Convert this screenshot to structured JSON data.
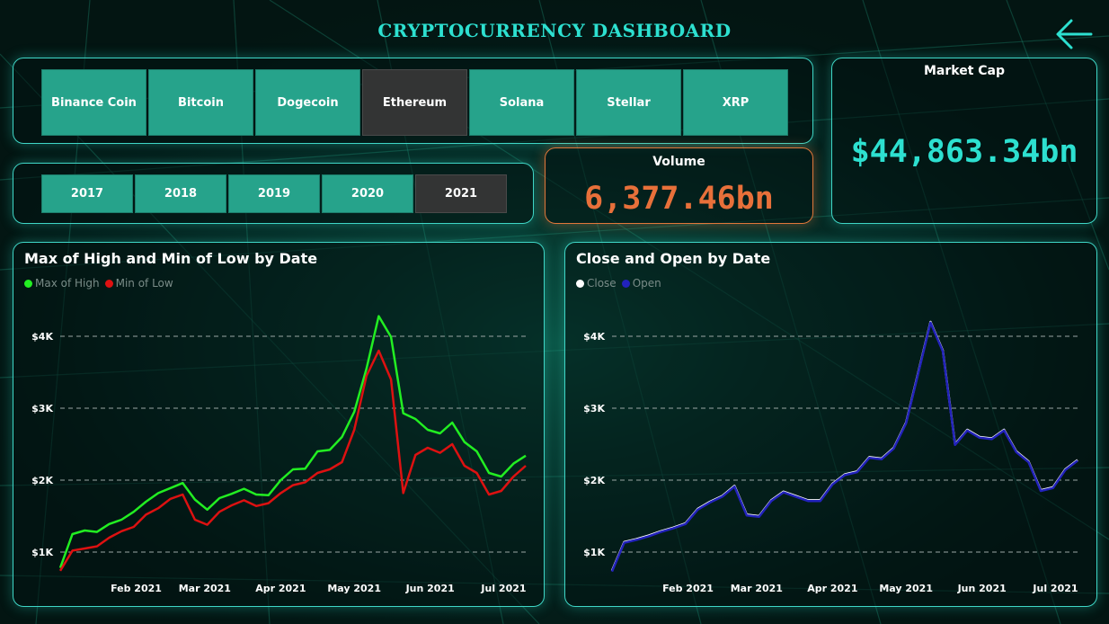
{
  "header": {
    "title": "CRYPTOCURRENCY DASHBOARD"
  },
  "icons": {
    "back": "back-arrow-icon"
  },
  "colors": {
    "accent": "#2de0d0",
    "button": "#26a38b",
    "button_selected": "#333434",
    "volume": "#e8703a",
    "market_cap": "#2de0d0",
    "high": "#22ee22",
    "low": "#dd1111",
    "close": "#ffffff",
    "open": "#2222bb"
  },
  "coin_slicer": {
    "items": [
      "Binance Coin",
      "Bitcoin",
      "Dogecoin",
      "Ethereum",
      "Solana",
      "Stellar",
      "XRP"
    ],
    "selected": "Ethereum"
  },
  "year_slicer": {
    "items": [
      "2017",
      "2018",
      "2019",
      "2020",
      "2021"
    ],
    "selected": "2021"
  },
  "volume": {
    "label": "Volume",
    "value": "6,377.46bn"
  },
  "market_cap": {
    "label": "Market Cap",
    "value": "$44,863.34bn"
  },
  "chart_data": [
    {
      "type": "line",
      "title": "Max of High and Min of Low by Date",
      "legend_position": "top-left",
      "grid": true,
      "x_tick_labels": [
        "Feb 2021",
        "Mar 2021",
        "Apr 2021",
        "May 2021",
        "Jun 2021",
        "Jul 2021"
      ],
      "y_tick_labels": [
        "$1K",
        "$2K",
        "$3K",
        "$4K"
      ],
      "ylim": [
        800,
        4300
      ],
      "x": [
        "2021-01-01",
        "2021-01-06",
        "2021-01-11",
        "2021-01-16",
        "2021-01-21",
        "2021-01-26",
        "2021-01-31",
        "2021-02-05",
        "2021-02-10",
        "2021-02-15",
        "2021-02-20",
        "2021-02-25",
        "2021-03-02",
        "2021-03-07",
        "2021-03-12",
        "2021-03-17",
        "2021-03-22",
        "2021-03-27",
        "2021-04-01",
        "2021-04-06",
        "2021-04-11",
        "2021-04-16",
        "2021-04-21",
        "2021-04-26",
        "2021-05-01",
        "2021-05-06",
        "2021-05-11",
        "2021-05-16",
        "2021-05-21",
        "2021-05-26",
        "2021-05-31",
        "2021-06-05",
        "2021-06-10",
        "2021-06-15",
        "2021-06-20",
        "2021-06-25",
        "2021-06-30",
        "2021-07-05",
        "2021-07-10"
      ],
      "series": [
        {
          "name": "Max of High",
          "color": "#22ee22",
          "values": [
            780,
            1250,
            1300,
            1280,
            1390,
            1450,
            1560,
            1700,
            1820,
            1890,
            1960,
            1730,
            1590,
            1750,
            1810,
            1880,
            1800,
            1790,
            2000,
            2150,
            2160,
            2400,
            2420,
            2600,
            2950,
            3550,
            4280,
            3990,
            2930,
            2850,
            2700,
            2650,
            2800,
            2530,
            2400,
            2100,
            2050,
            2230,
            2340
          ]
        },
        {
          "name": "Min of Low",
          "color": "#dd1111",
          "values": [
            740,
            1020,
            1050,
            1080,
            1200,
            1290,
            1350,
            1520,
            1610,
            1740,
            1800,
            1450,
            1380,
            1560,
            1650,
            1720,
            1640,
            1680,
            1820,
            1930,
            1970,
            2100,
            2150,
            2250,
            2700,
            3450,
            3800,
            3400,
            1820,
            2350,
            2450,
            2380,
            2500,
            2200,
            2100,
            1800,
            1850,
            2050,
            2200
          ]
        }
      ]
    },
    {
      "type": "line",
      "title": "Close and Open by Date",
      "legend_position": "top-left",
      "grid": true,
      "x_tick_labels": [
        "Feb 2021",
        "Mar 2021",
        "Apr 2021",
        "May 2021",
        "Jun 2021",
        "Jul 2021"
      ],
      "y_tick_labels": [
        "$1K",
        "$2K",
        "$3K",
        "$4K"
      ],
      "ylim": [
        800,
        4300
      ],
      "x": [
        "2021-01-01",
        "2021-01-06",
        "2021-01-11",
        "2021-01-16",
        "2021-01-21",
        "2021-01-26",
        "2021-01-31",
        "2021-02-05",
        "2021-02-10",
        "2021-02-15",
        "2021-02-20",
        "2021-02-25",
        "2021-03-02",
        "2021-03-07",
        "2021-03-12",
        "2021-03-17",
        "2021-03-22",
        "2021-03-27",
        "2021-04-01",
        "2021-04-06",
        "2021-04-11",
        "2021-04-16",
        "2021-04-21",
        "2021-04-26",
        "2021-05-01",
        "2021-05-06",
        "2021-05-11",
        "2021-05-16",
        "2021-05-21",
        "2021-05-26",
        "2021-05-31",
        "2021-06-05",
        "2021-06-10",
        "2021-06-15",
        "2021-06-20",
        "2021-06-25",
        "2021-06-30",
        "2021-07-05",
        "2021-07-10"
      ],
      "series": [
        {
          "name": "Close",
          "color": "#ffffff",
          "values": [
            740,
            1140,
            1180,
            1230,
            1290,
            1340,
            1400,
            1600,
            1700,
            1780,
            1920,
            1520,
            1500,
            1720,
            1840,
            1780,
            1720,
            1720,
            1950,
            2080,
            2120,
            2320,
            2300,
            2450,
            2800,
            3500,
            4200,
            3800,
            2500,
            2700,
            2600,
            2580,
            2700,
            2400,
            2260,
            1860,
            1900,
            2150,
            2280
          ]
        },
        {
          "name": "Open",
          "color": "#2222bb",
          "values": [
            730,
            1130,
            1170,
            1220,
            1280,
            1330,
            1390,
            1590,
            1690,
            1770,
            1910,
            1510,
            1490,
            1710,
            1830,
            1770,
            1710,
            1710,
            1940,
            2070,
            2110,
            2310,
            2290,
            2440,
            2790,
            3490,
            4190,
            3790,
            2490,
            2690,
            2590,
            2570,
            2690,
            2390,
            2250,
            1850,
            1890,
            2140,
            2270
          ]
        }
      ]
    }
  ]
}
